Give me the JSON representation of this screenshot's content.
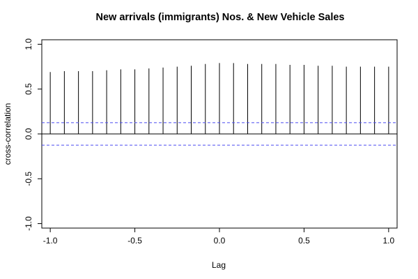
{
  "chart_data": {
    "type": "bar",
    "title": "New arrivals (immigrants) Nos. & New Vehicle Sales",
    "xlabel": "Lag",
    "ylabel": "cross-correlation",
    "xlim": [
      -1.05,
      1.05
    ],
    "ylim": [
      -1.05,
      1.05
    ],
    "x_ticks": [
      -1.0,
      -0.5,
      0.0,
      0.5,
      1.0
    ],
    "x_tick_labels": [
      "-1.0",
      "-0.5",
      "0.0",
      "0.5",
      "1.0"
    ],
    "y_ticks": [
      -1.0,
      -0.5,
      0.0,
      0.5,
      1.0
    ],
    "y_tick_labels": [
      "-1.0",
      "-0.5",
      "0.0",
      "0.5",
      "1.0"
    ],
    "confidence_bound": 0.125,
    "grid": false,
    "colors": {
      "bars": "#000000",
      "confidence": "#4a4af0",
      "zero_line": "#000000"
    },
    "lags": [
      -1.0,
      -0.9167,
      -0.8333,
      -0.75,
      -0.6667,
      -0.5833,
      -0.5,
      -0.4167,
      -0.3333,
      -0.25,
      -0.1667,
      -0.0833,
      0.0,
      0.0833,
      0.1667,
      0.25,
      0.3333,
      0.4167,
      0.5,
      0.5833,
      0.6667,
      0.75,
      0.8333,
      0.9167,
      1.0
    ],
    "values": [
      0.69,
      0.7,
      0.7,
      0.7,
      0.71,
      0.72,
      0.72,
      0.73,
      0.74,
      0.75,
      0.76,
      0.78,
      0.79,
      0.79,
      0.78,
      0.78,
      0.78,
      0.77,
      0.77,
      0.76,
      0.76,
      0.75,
      0.75,
      0.75,
      0.75
    ]
  }
}
